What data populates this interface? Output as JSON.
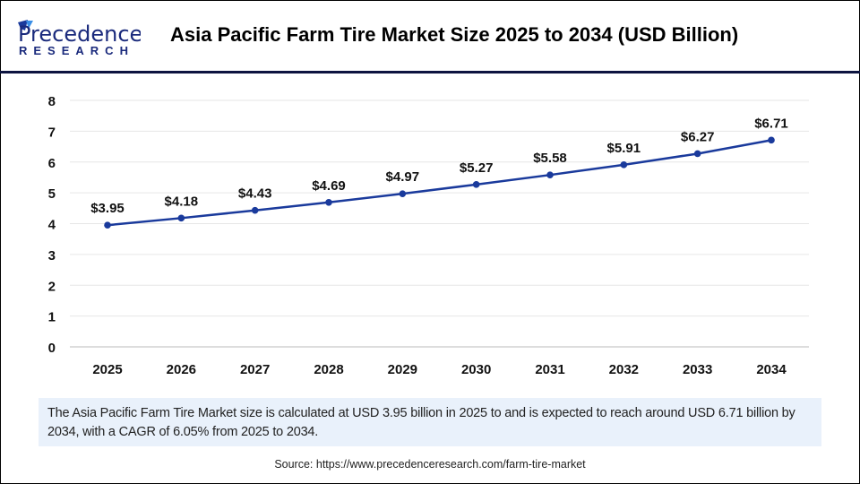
{
  "logo": {
    "line1": "Precedence",
    "line2": "RESEARCH"
  },
  "title": "Asia Pacific Farm Tire Market Size 2025 to 2034 (USD Billion)",
  "chart_data": {
    "type": "line",
    "title": "Asia Pacific Farm Tire Market Size 2025 to 2034 (USD Billion)",
    "categories": [
      "2025",
      "2026",
      "2027",
      "2028",
      "2029",
      "2030",
      "2031",
      "2032",
      "2033",
      "2034"
    ],
    "values": [
      3.95,
      4.18,
      4.43,
      4.69,
      4.97,
      5.27,
      5.58,
      5.91,
      6.27,
      6.71
    ],
    "data_labels": [
      "$3.95",
      "$4.18",
      "$4.43",
      "$4.69",
      "$4.97",
      "$5.27",
      "$5.58",
      "$5.91",
      "$6.27",
      "$6.71"
    ],
    "yticks": [
      "0",
      "1",
      "2",
      "3",
      "4",
      "5",
      "6",
      "7",
      "8"
    ],
    "ylim": [
      0,
      8
    ],
    "grid": true,
    "line_color": "#1a3a9c"
  },
  "note": "The Asia Pacific Farm Tire Market size is calculated at USD 3.95 billion in 2025 to and is expected to reach around USD 6.71 billion by 2034, with a CAGR of 6.05% from 2025 to 2034.",
  "source": "Source: https://www.precedenceresearch.com/farm-tire-market"
}
